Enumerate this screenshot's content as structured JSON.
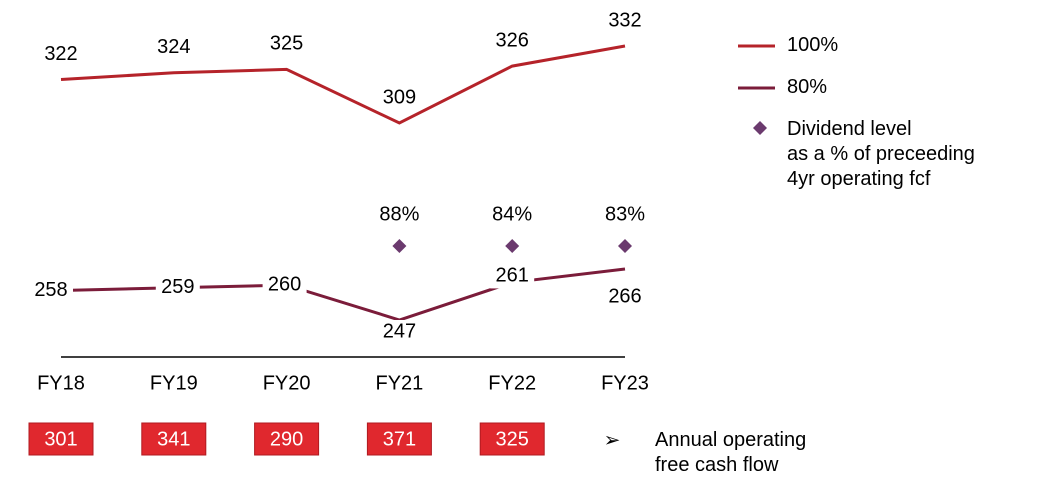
{
  "chart_data": {
    "type": "line",
    "categories": [
      "FY18",
      "FY19",
      "FY20",
      "FY21",
      "FY22",
      "FY23"
    ],
    "series": [
      {
        "name": "100%",
        "color": "#b5232a",
        "values": [
          322,
          324,
          325,
          309,
          326,
          332
        ]
      },
      {
        "name": "80%",
        "color": "#7b1c3a",
        "values": [
          258,
          259,
          260,
          247,
          261,
          266
        ]
      },
      {
        "name": "Dividend level\nas a % of preceeding\n4yr operating fcf",
        "color": "#6b3a6e",
        "marker": "diamond",
        "values": [
          null,
          null,
          null,
          88,
          84,
          83
        ],
        "value_labels": [
          null,
          null,
          null,
          "88%",
          "84%",
          "83%"
        ]
      },
      {
        "name": "Annual operating\nfree cash flow",
        "color": "#e0282e",
        "marker": "box",
        "values": [
          301,
          341,
          290,
          371,
          325,
          null
        ]
      }
    ]
  }
}
